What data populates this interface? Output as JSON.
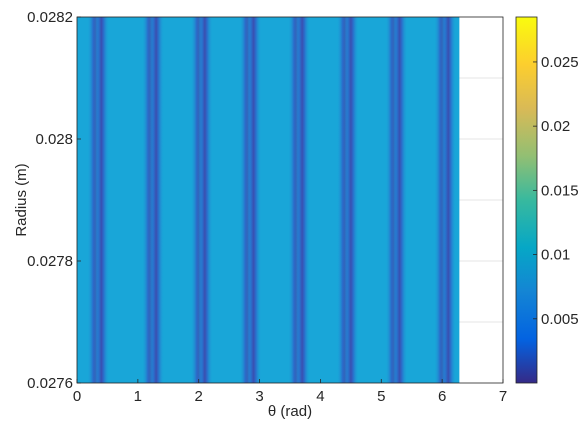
{
  "chart_data": {
    "type": "heatmap",
    "title": "",
    "xlabel": "θ (rad)",
    "ylabel": "Radius (m)",
    "xlim": [
      0,
      7
    ],
    "ylim": [
      0.0276,
      0.0282
    ],
    "x_ticks": [
      "0",
      "1",
      "2",
      "3",
      "4",
      "5",
      "6",
      "7"
    ],
    "y_ticks": [
      "0.0276",
      "0.0278",
      "0.028",
      "0.0282"
    ],
    "data_x_range": [
      0,
      6.283
    ],
    "stripe_theta_centers": [
      0.3,
      0.4,
      1.2,
      1.3,
      2.0,
      2.1,
      2.8,
      2.9,
      3.6,
      3.7,
      4.4,
      4.5,
      5.2,
      5.3,
      6.0,
      6.1
    ],
    "stripe_value": 0.0045,
    "background_value": 0.0095,
    "colorbar": {
      "range": [
        0,
        0.0285
      ],
      "ticks": [
        "0.005",
        "0.01",
        "0.015",
        "0.02",
        "0.025"
      ],
      "colormap": "parula"
    },
    "grid": true
  }
}
